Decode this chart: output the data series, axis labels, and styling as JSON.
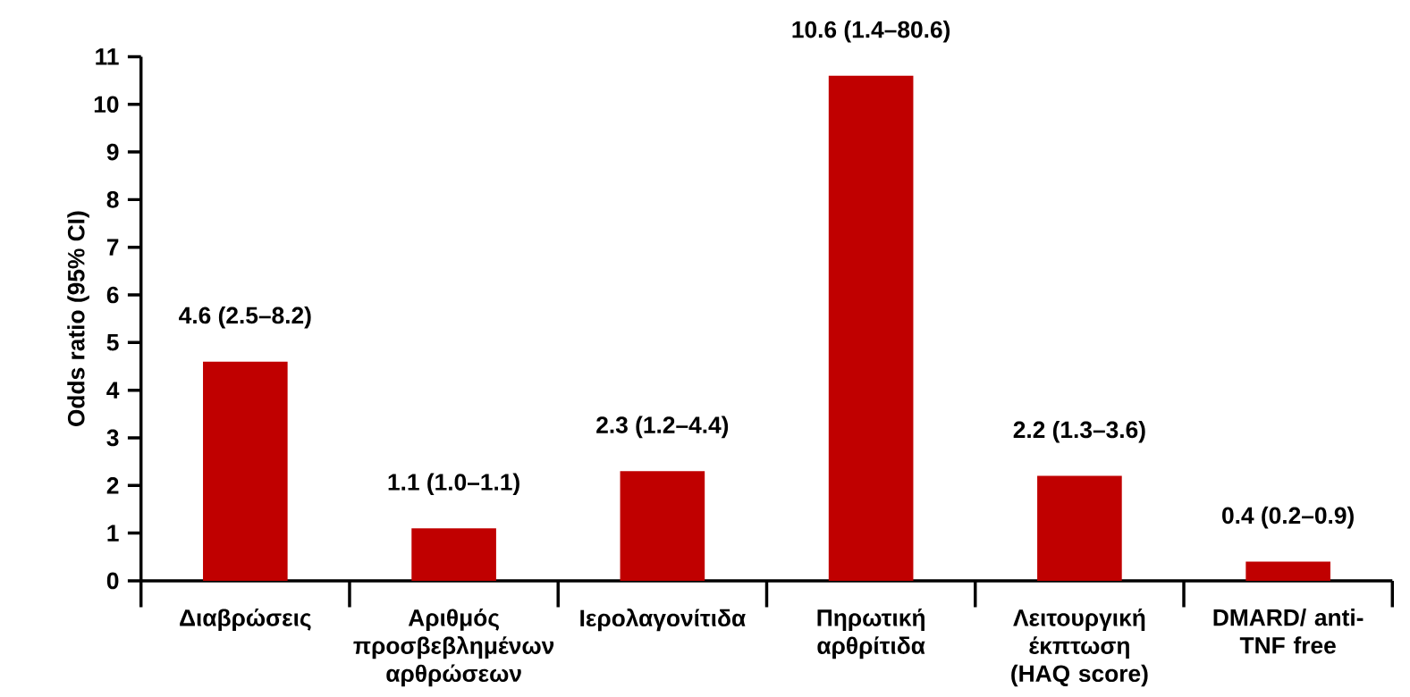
{
  "chart_data": {
    "type": "bar",
    "ylabel": "Odds ratio (95% CI)",
    "categories": [
      "Διαβρώσεις",
      "Αριθμός προσβεβλημένων αρθρώσεων",
      "Ιερολαγονίτιδα",
      "Πηρωτική αρθρίτιδα",
      "Λειτουργική έκπτωση (HAQ score)",
      "DMARD/ anti-TNF free"
    ],
    "values": [
      4.6,
      1.1,
      2.3,
      10.6,
      2.2,
      0.4
    ],
    "value_labels": [
      "4.6 (2.5–8.2)",
      "1.1 (1.0–1.1)",
      "2.3 (1.2–4.4)",
      "10.6 (1.4–80.6)",
      "2.2 (1.3–3.6)",
      "0.4 (0.2–0.9)"
    ],
    "color": "#c00000",
    "ylim": [
      0,
      11
    ],
    "yticks": [
      0,
      1,
      2,
      3,
      4,
      5,
      6,
      7,
      8,
      9,
      10,
      11
    ],
    "grid": false
  }
}
